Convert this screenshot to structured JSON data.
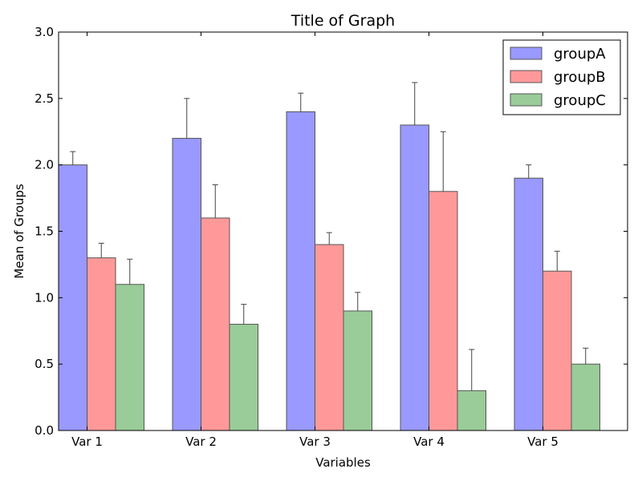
{
  "chart_data": {
    "type": "bar",
    "title": "Title of Graph",
    "xlabel": "Variables",
    "ylabel": "Mean of Groups",
    "categories": [
      "Var 1",
      "Var 2",
      "Var 3",
      "Var 4",
      "Var 5"
    ],
    "ylim": [
      0,
      3.0
    ],
    "yticks": [
      "0.0",
      "0.5",
      "1.0",
      "1.5",
      "2.0",
      "2.5",
      "3.0"
    ],
    "legend_position": "top-right",
    "series": [
      {
        "name": "groupA",
        "color": "#9999ff",
        "values": [
          2.0,
          2.2,
          2.4,
          2.3,
          1.9
        ],
        "errors": [
          0.1,
          0.3,
          0.14,
          0.32,
          0.1
        ]
      },
      {
        "name": "groupB",
        "color": "#ff9999",
        "values": [
          1.3,
          1.6,
          1.4,
          1.8,
          1.2
        ],
        "errors": [
          0.11,
          0.25,
          0.09,
          0.45,
          0.15
        ]
      },
      {
        "name": "groupC",
        "color": "#99cc99",
        "values": [
          1.1,
          0.8,
          0.9,
          0.3,
          0.5
        ],
        "errors": [
          0.19,
          0.15,
          0.14,
          0.31,
          0.12
        ]
      }
    ]
  }
}
